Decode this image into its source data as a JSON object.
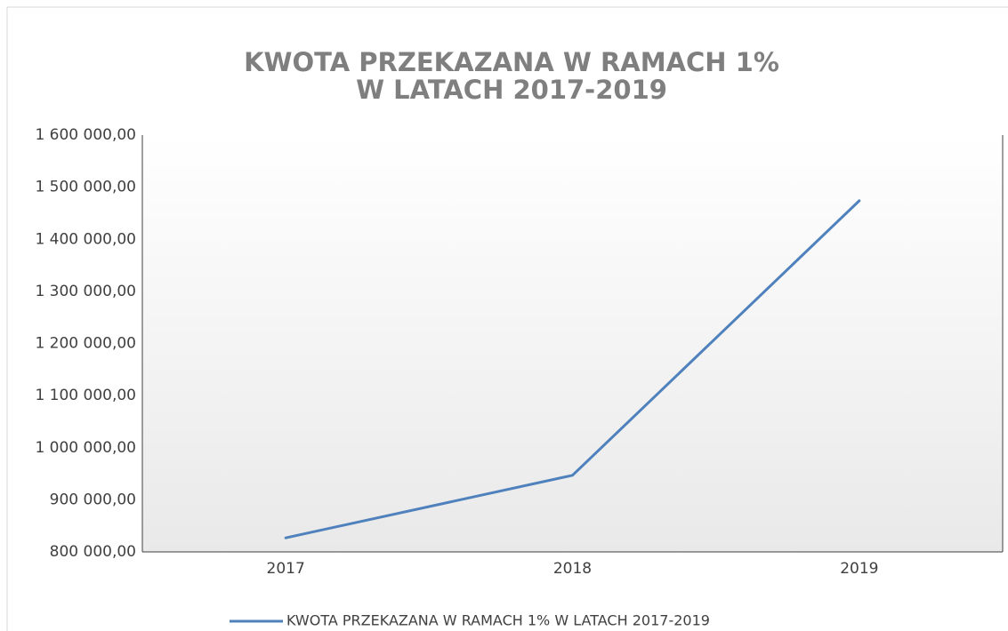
{
  "chart_data": {
    "type": "line",
    "title": [
      "KWOTA PRZEKAZANA W RAMACH 1%",
      "W LATACH 2017-2019"
    ],
    "categories": [
      "2017",
      "2018",
      "2019"
    ],
    "series": [
      {
        "name": "KWOTA PRZEKAZANA W RAMACH 1% W LATACH 2017-2019",
        "color": "#4f81bd",
        "values": [
          827000,
          947000,
          1474000
        ]
      }
    ],
    "ylim": [
      800000,
      1600000
    ],
    "yticks": [
      {
        "value": 800000,
        "label": "800 000,00"
      },
      {
        "value": 900000,
        "label": "900 000,00"
      },
      {
        "value": 1000000,
        "label": "1 000 000,00"
      },
      {
        "value": 1100000,
        "label": "1 100 000,00"
      },
      {
        "value": 1200000,
        "label": "1 200 000,00"
      },
      {
        "value": 1300000,
        "label": "1 300 000,00"
      },
      {
        "value": 1400000,
        "label": "1 400 000,00"
      },
      {
        "value": 1500000,
        "label": "1 500 000,00"
      },
      {
        "value": 1600000,
        "label": "1 600 000,00"
      }
    ],
    "grid": false,
    "legend": "bottom"
  }
}
